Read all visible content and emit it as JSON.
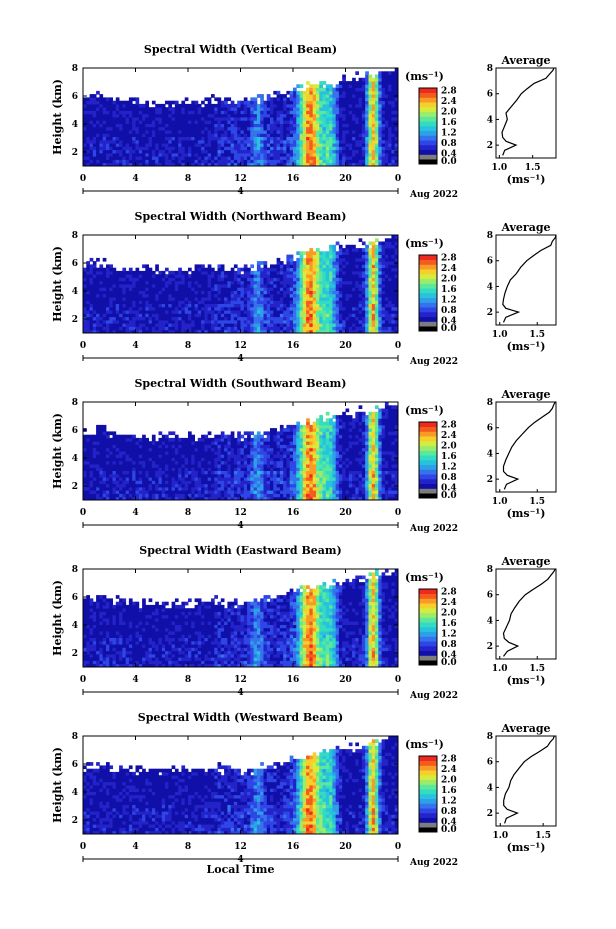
{
  "figure": {
    "xlabel": "Local Time",
    "ylabel": "Height (km)",
    "date_label": "Aug 2022",
    "day_marker": "4",
    "cbar_unit": "(ms⁻¹)",
    "avg_title": "Average",
    "avg_xlabel": "(ms⁻¹)"
  },
  "colors": {
    "scale": [
      "#000000",
      "#7d7d7d",
      "#1010a8",
      "#2323c9",
      "#2f46e6",
      "#3573ec",
      "#2ea0e8",
      "#27c2de",
      "#33dcc0",
      "#5be79c",
      "#9bec6a",
      "#d5ec3e",
      "#f5d02d",
      "#f99a26",
      "#f45b1f",
      "#ee2a1f"
    ]
  },
  "chart_data": [
    {
      "type": "heatmap",
      "title": "Spectral Width (Vertical Beam)",
      "x_ticks": [
        "0",
        "4",
        "8",
        "12",
        "16",
        "20",
        "0"
      ],
      "y_ticks": [
        "2",
        "4",
        "6",
        "8"
      ],
      "xlim": [
        0,
        24
      ],
      "ylim": [
        1,
        8
      ],
      "cbar_ticks": [
        "0.0",
        "0.4",
        "0.8",
        "1.2",
        "1.6",
        "2.0",
        "2.4",
        "2.8"
      ],
      "cbar_range": [
        0,
        2.9
      ],
      "average": {
        "title": "Average",
        "x_ticks": [
          "1.0",
          "1.5"
        ],
        "xlim": [
          0.95,
          1.85
        ],
        "y_ticks": [
          "2",
          "4",
          "6",
          "8"
        ],
        "height": [
          1.2,
          1.6,
          2.0,
          2.3,
          2.6,
          3.0,
          3.5,
          4.0,
          4.5,
          5.0,
          5.5,
          6.0,
          6.4,
          6.8,
          7.2,
          7.5,
          7.8,
          8.0
        ],
        "width": [
          1.05,
          1.08,
          1.25,
          1.1,
          1.05,
          1.04,
          1.08,
          1.12,
          1.1,
          1.18,
          1.26,
          1.33,
          1.42,
          1.52,
          1.7,
          1.75,
          1.8,
          1.82
        ]
      }
    },
    {
      "type": "heatmap",
      "title": "Spectral Width (Northward Beam)",
      "x_ticks": [
        "0",
        "4",
        "8",
        "12",
        "16",
        "20",
        "0"
      ],
      "y_ticks": [
        "2",
        "4",
        "6",
        "8"
      ],
      "xlim": [
        0,
        24
      ],
      "ylim": [
        1,
        8
      ],
      "cbar_ticks": [
        "0.0",
        "0.4",
        "0.8",
        "1.2",
        "1.6",
        "2.0",
        "2.4",
        "2.8"
      ],
      "cbar_range": [
        0,
        2.9
      ],
      "average": {
        "title": "Average",
        "x_ticks": [
          "1.0",
          "1.5"
        ],
        "xlim": [
          0.95,
          1.75
        ],
        "y_ticks": [
          "2",
          "4",
          "6",
          "8"
        ],
        "height": [
          1.2,
          1.6,
          2.0,
          2.3,
          2.6,
          3.0,
          3.5,
          4.0,
          4.5,
          5.0,
          5.5,
          6.0,
          6.4,
          6.8,
          7.2,
          7.5,
          7.8,
          8.0
        ],
        "width": [
          1.05,
          1.08,
          1.25,
          1.08,
          1.04,
          1.05,
          1.07,
          1.1,
          1.14,
          1.22,
          1.28,
          1.36,
          1.45,
          1.55,
          1.68,
          1.7,
          1.74,
          1.75
        ]
      }
    },
    {
      "type": "heatmap",
      "title": "Spectral Width (Southward Beam)",
      "x_ticks": [
        "0",
        "4",
        "8",
        "12",
        "16",
        "20",
        "0"
      ],
      "y_ticks": [
        "2",
        "4",
        "6",
        "8"
      ],
      "xlim": [
        0,
        24
      ],
      "ylim": [
        1,
        8
      ],
      "cbar_ticks": [
        "0.0",
        "0.4",
        "0.8",
        "1.2",
        "1.6",
        "2.0",
        "2.4",
        "2.8"
      ],
      "cbar_range": [
        0,
        2.9
      ],
      "average": {
        "title": "Average",
        "x_ticks": [
          "1.0",
          "1.5"
        ],
        "xlim": [
          0.95,
          1.75
        ],
        "y_ticks": [
          "2",
          "4",
          "6",
          "8"
        ],
        "height": [
          1.2,
          1.6,
          2.0,
          2.3,
          2.6,
          3.0,
          3.5,
          4.0,
          4.5,
          5.0,
          5.5,
          6.0,
          6.4,
          6.8,
          7.2,
          7.5,
          7.8,
          8.0
        ],
        "width": [
          1.06,
          1.09,
          1.24,
          1.1,
          1.05,
          1.05,
          1.08,
          1.12,
          1.16,
          1.22,
          1.3,
          1.38,
          1.46,
          1.56,
          1.66,
          1.7,
          1.72,
          1.74
        ]
      }
    },
    {
      "type": "heatmap",
      "title": "Spectral Width (Eastward Beam)",
      "x_ticks": [
        "0",
        "4",
        "8",
        "12",
        "16",
        "20",
        "0"
      ],
      "y_ticks": [
        "2",
        "4",
        "6",
        "8"
      ],
      "xlim": [
        0,
        24
      ],
      "ylim": [
        1,
        8
      ],
      "cbar_ticks": [
        "0.0",
        "0.4",
        "0.8",
        "1.2",
        "1.6",
        "2.0",
        "2.4",
        "2.8"
      ],
      "cbar_range": [
        0,
        2.9
      ],
      "average": {
        "title": "Average",
        "x_ticks": [
          "1.0",
          "1.5"
        ],
        "xlim": [
          0.95,
          1.75
        ],
        "y_ticks": [
          "2",
          "4",
          "6",
          "8"
        ],
        "height": [
          1.2,
          1.6,
          2.0,
          2.3,
          2.6,
          3.0,
          3.5,
          4.0,
          4.5,
          5.0,
          5.5,
          6.0,
          6.4,
          6.8,
          7.2,
          7.5,
          7.8,
          8.0
        ],
        "width": [
          1.05,
          1.1,
          1.24,
          1.12,
          1.06,
          1.05,
          1.09,
          1.13,
          1.15,
          1.2,
          1.26,
          1.34,
          1.44,
          1.55,
          1.64,
          1.68,
          1.72,
          1.74
        ]
      }
    },
    {
      "type": "heatmap",
      "title": "Spectral Width (Westward Beam)",
      "x_ticks": [
        "0",
        "4",
        "8",
        "12",
        "16",
        "20",
        "0"
      ],
      "y_ticks": [
        "2",
        "4",
        "6",
        "8"
      ],
      "xlim": [
        0,
        24
      ],
      "ylim": [
        1,
        8
      ],
      "cbar_ticks": [
        "0.0",
        "0.4",
        "0.8",
        "1.2",
        "1.6",
        "2.0",
        "2.4",
        "2.8"
      ],
      "cbar_range": [
        0,
        2.9
      ],
      "average": {
        "title": "Average",
        "x_ticks": [
          "1.0",
          "1.5"
        ],
        "xlim": [
          0.95,
          1.65
        ],
        "y_ticks": [
          "2",
          "4",
          "6",
          "8"
        ],
        "height": [
          1.2,
          1.6,
          2.0,
          2.3,
          2.6,
          3.0,
          3.5,
          4.0,
          4.5,
          5.0,
          5.5,
          6.0,
          6.4,
          6.8,
          7.2,
          7.5,
          7.8,
          8.0
        ],
        "width": [
          1.05,
          1.07,
          1.2,
          1.08,
          1.04,
          1.04,
          1.06,
          1.1,
          1.12,
          1.16,
          1.22,
          1.28,
          1.36,
          1.46,
          1.55,
          1.58,
          1.62,
          1.63
        ]
      }
    }
  ]
}
